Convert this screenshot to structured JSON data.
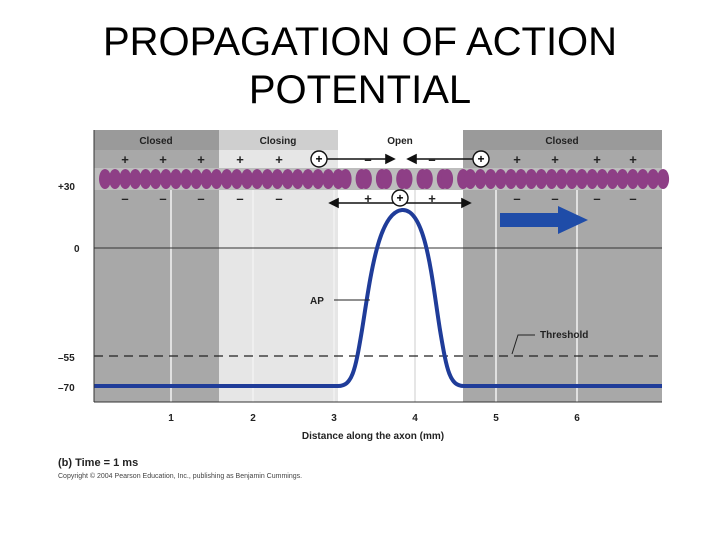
{
  "slide": {
    "title_line1": "PROPAGATION OF ACTION",
    "title_line2": "POTENTIAL"
  },
  "diagram": {
    "regions": [
      {
        "label": "Closed",
        "state": "closed"
      },
      {
        "label": "Closing",
        "state": "closing"
      },
      {
        "label": "Open",
        "state": "open"
      },
      {
        "label": "Closed",
        "state": "closed"
      }
    ],
    "y_axis": {
      "ticks": [
        {
          "value": 30,
          "label": "+30"
        },
        {
          "value": 0,
          "label": "0"
        },
        {
          "value": -55,
          "label": "–55"
        },
        {
          "value": -70,
          "label": "–70"
        }
      ]
    },
    "x_axis": {
      "label": "Distance along the axon (mm)",
      "ticks": [
        "1",
        "2",
        "3",
        "4",
        "5",
        "6"
      ]
    },
    "ap_label": "AP",
    "threshold_label": "Threshold",
    "time_caption": "(b) Time = 1 ms",
    "copyright": "Copyright © 2004 Pearson Education, Inc., publishing as Benjamin Cummings.",
    "colors": {
      "closed_region": "#a8a8a8",
      "closing_region": "#e6e6e6",
      "open_region": "#ffffff",
      "header": "#9a9a9a",
      "ap_curve": "#1f3c99",
      "arrow": "#1f4ca8",
      "channel": "#8e3f86"
    },
    "icons": {
      "direction_arrow": "right-arrow-icon",
      "channel": "sodium-channel-icon"
    }
  }
}
